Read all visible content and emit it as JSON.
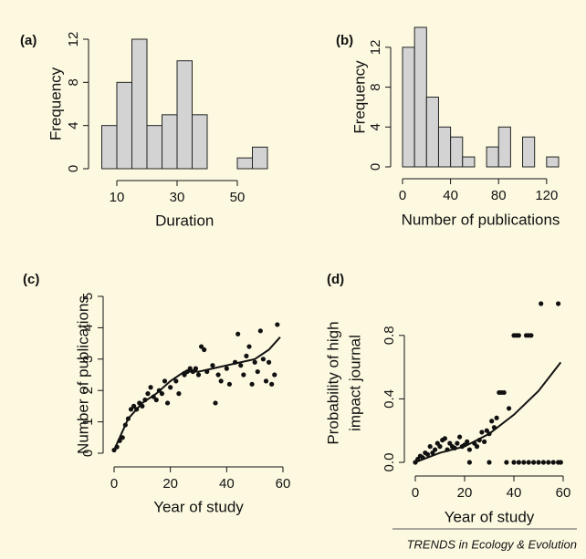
{
  "chart_data": [
    {
      "type": "histogram",
      "label": "(a)",
      "xlabel": "Duration",
      "ylabel": [
        "Frequency"
      ],
      "bins": [
        5,
        10,
        15,
        20,
        25,
        30,
        35,
        40,
        45,
        50,
        55,
        60
      ],
      "counts": [
        4,
        8,
        12,
        4,
        5,
        10,
        5,
        0,
        0,
        1,
        2
      ],
      "color": "#d3d3d3",
      "xlim": [
        5,
        60
      ],
      "ylim": [
        0,
        12
      ],
      "xticks": [
        10,
        30,
        50
      ],
      "yticks": [
        0,
        4,
        8,
        12
      ]
    },
    {
      "type": "histogram",
      "label": "(b)",
      "xlabel": "Number of publications",
      "ylabel": [
        "Frequency"
      ],
      "bins": [
        0,
        10,
        20,
        30,
        40,
        50,
        60,
        70,
        80,
        90,
        100,
        110,
        120,
        130
      ],
      "counts": [
        12,
        14,
        7,
        4,
        3,
        1,
        0,
        2,
        4,
        0,
        3,
        0,
        1
      ],
      "color": "#d3d3d3",
      "xlim": [
        0,
        130
      ],
      "ylim": [
        0,
        14
      ],
      "xticks": [
        0,
        40,
        80,
        120
      ],
      "yticks": [
        0,
        4,
        8,
        12
      ]
    },
    {
      "type": "scatter",
      "label": "(c)",
      "xlabel": "Year of study",
      "ylabel": [
        "Number of publications"
      ],
      "xlim": [
        0,
        60
      ],
      "ylim": [
        0,
        5
      ],
      "xticks": [
        0,
        20,
        40,
        60
      ],
      "yticks": [
        0,
        1,
        2,
        3,
        4,
        5
      ],
      "series": [
        {
          "type": "scatter",
          "color": "#111111",
          "x": [
            0,
            1,
            2,
            3,
            4,
            5,
            6,
            7,
            8,
            9,
            10,
            11,
            12,
            13,
            14,
            15,
            16,
            17,
            18,
            19,
            20,
            22,
            23,
            25,
            26,
            27,
            28,
            29,
            30,
            31,
            32,
            33,
            35,
            36,
            37,
            38,
            40,
            41,
            43,
            44,
            45,
            46,
            47,
            48,
            49,
            50,
            51,
            52,
            53,
            54,
            55,
            56,
            57,
            58
          ],
          "values": [
            0.1,
            0.2,
            0.4,
            0.5,
            0.9,
            1.1,
            1.4,
            1.5,
            1.4,
            1.6,
            1.5,
            1.7,
            1.9,
            2.1,
            1.8,
            1.7,
            2.0,
            1.9,
            2.3,
            1.6,
            2.1,
            2.3,
            1.9,
            2.5,
            2.6,
            2.7,
            2.6,
            2.7,
            2.5,
            3.4,
            3.3,
            2.6,
            2.8,
            1.6,
            2.5,
            2.3,
            2.7,
            2.2,
            2.9,
            3.8,
            2.8,
            2.5,
            3.1,
            3.4,
            2.2,
            2.9,
            2.6,
            3.9,
            3.0,
            2.3,
            2.9,
            2.2,
            2.5,
            4.1
          ]
        },
        {
          "type": "line",
          "color": "#111111",
          "x": [
            0,
            5,
            10,
            15,
            20,
            25,
            30,
            35,
            40,
            45,
            50,
            55,
            59
          ],
          "values": [
            0.1,
            1.1,
            1.6,
            1.9,
            2.3,
            2.6,
            2.6,
            2.7,
            2.8,
            2.9,
            3.0,
            3.3,
            3.7
          ]
        }
      ]
    },
    {
      "type": "scatter",
      "label": "(d)",
      "xlabel": "Year of study",
      "ylabel": [
        "Probability of high",
        "impact journal"
      ],
      "xlim": [
        0,
        60
      ],
      "ylim": [
        0,
        1
      ],
      "xticks": [
        0,
        20,
        40,
        60
      ],
      "yticks": [
        {
          "value": 0,
          "label": "0.0"
        },
        0.4,
        0.8
      ],
      "series": [
        {
          "type": "scatter",
          "color": "#111111",
          "x": [
            0,
            1,
            2,
            3,
            4,
            5,
            6,
            7,
            8,
            9,
            10,
            11,
            12,
            13,
            14,
            15,
            16,
            17,
            18,
            19,
            20,
            21,
            22,
            24,
            25,
            26,
            27,
            28,
            29,
            30,
            31,
            32,
            33,
            34,
            35,
            36,
            38,
            40,
            41,
            42,
            45,
            46,
            47,
            51,
            58,
            37,
            40,
            42,
            44,
            46,
            48,
            50,
            52,
            54,
            56,
            58,
            59,
            22,
            30
          ],
          "values": [
            0.0,
            0.02,
            0.04,
            0.03,
            0.06,
            0.05,
            0.1,
            0.06,
            0.08,
            0.12,
            0.1,
            0.14,
            0.15,
            0.08,
            0.12,
            0.1,
            0.09,
            0.12,
            0.16,
            0.1,
            0.11,
            0.13,
            0.08,
            0.12,
            0.1,
            0.14,
            0.19,
            0.13,
            0.2,
            0.18,
            0.26,
            0.22,
            0.28,
            0.44,
            0.44,
            0.44,
            0.34,
            0.8,
            0.8,
            0.8,
            0.8,
            0.8,
            0.8,
            1.0,
            1.0,
            0,
            0,
            0,
            0,
            0,
            0,
            0,
            0,
            0,
            0,
            0,
            0,
            0,
            0
          ]
        },
        {
          "type": "line",
          "color": "#111111",
          "x": [
            0,
            10,
            20,
            30,
            40,
            50,
            59
          ],
          "values": [
            0.0,
            0.06,
            0.1,
            0.18,
            0.3,
            0.45,
            0.63
          ]
        }
      ]
    }
  ],
  "footer": "TRENDS in Ecology & Evolution"
}
